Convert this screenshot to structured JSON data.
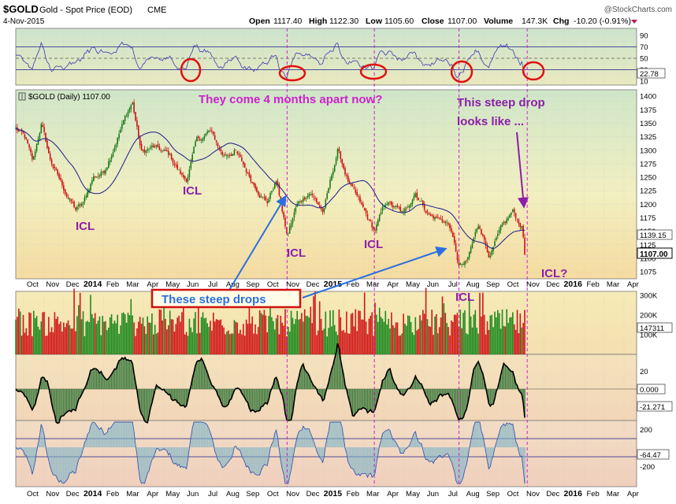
{
  "header": {
    "symbol": "$GOLD",
    "name": "Gold - Spot Price (EOD)",
    "exchange": "CME",
    "date": "4-Nov-2015",
    "open_label": "Open",
    "open": "1117.40",
    "high_label": "High",
    "high": "1122.30",
    "low_label": "Low",
    "low": "1105.60",
    "close_label": "Close",
    "close": "1107.00",
    "volume_label": "Volume",
    "volume": "147.3K",
    "chg_label": "Chg",
    "chg": "-10.20 (-0.91%)",
    "watermark": "@StockCharts.com"
  },
  "price_legend": "$GOLD (Daily) 1107.00",
  "annotations": {
    "months_apart": "They come 4 months apart now?",
    "steep_drop_1": "This steep drop",
    "steep_drop_2": "looks like ...",
    "steep_drops": "These steep drops",
    "icl": "ICL",
    "icl_q": "ICL?"
  },
  "colors": {
    "up": "#1a7a1a",
    "down": "#cc1111",
    "ma": "#1a1a8a",
    "annotation_purple": "#8b1fa8",
    "annotation_magenta": "#cc22cc",
    "arrow_blue": "#2b6fe0",
    "circle_red": "#e01010",
    "box_red": "#d01010"
  },
  "rsi_panel": {
    "ticks": [
      "90",
      "70",
      "50",
      "30",
      "10"
    ],
    "value_label": "22.78"
  },
  "volume_panel": {
    "ticks": [
      "300K",
      "200K",
      "100K"
    ],
    "value_label": "147311"
  },
  "osc1_panel": {
    "ticks": [
      "20",
      "0.000",
      "-21.271"
    ]
  },
  "osc2_panel": {
    "ticks": [
      "200",
      "-64.47",
      "-200"
    ]
  },
  "price_value_labels": {
    "ma": "1139.15",
    "close": "1107.00"
  },
  "chart_data": {
    "type": "candlestick",
    "title": "$GOLD Gold - Spot Price (EOD)",
    "x_labels": [
      "Oct",
      "Nov",
      "Dec",
      "2014",
      "Feb",
      "Mar",
      "Apr",
      "May",
      "Jun",
      "Jul",
      "Aug",
      "Sep",
      "Oct",
      "Nov",
      "Dec",
      "2015",
      "Feb",
      "Mar",
      "Apr",
      "May",
      "Jun",
      "Jul",
      "Aug",
      "Sep",
      "Oct",
      "Nov",
      "Dec",
      "2016",
      "Feb",
      "Mar",
      "Apr"
    ],
    "y_ticks": [
      1400,
      1375,
      1350,
      1325,
      1300,
      1275,
      1250,
      1225,
      1200,
      1175,
      1150,
      1125,
      1100,
      1075
    ],
    "ylim": [
      1062,
      1412
    ],
    "price_path": [
      {
        "date": "2013-09-20",
        "value": 1340
      },
      {
        "date": "2013-10-04",
        "value": 1320
      },
      {
        "date": "2013-10-15",
        "value": 1275
      },
      {
        "date": "2013-10-28",
        "value": 1350
      },
      {
        "date": "2013-11-10",
        "value": 1285
      },
      {
        "date": "2013-11-25",
        "value": 1245
      },
      {
        "date": "2013-12-05",
        "value": 1220
      },
      {
        "date": "2013-12-19",
        "value": 1190
      },
      {
        "date": "2013-12-31",
        "value": 1200
      },
      {
        "date": "2014-01-15",
        "value": 1250
      },
      {
        "date": "2014-02-01",
        "value": 1260
      },
      {
        "date": "2014-02-25",
        "value": 1335
      },
      {
        "date": "2014-03-14",
        "value": 1390
      },
      {
        "date": "2014-03-28",
        "value": 1295
      },
      {
        "date": "2014-04-15",
        "value": 1305
      },
      {
        "date": "2014-05-10",
        "value": 1290
      },
      {
        "date": "2014-05-30",
        "value": 1250
      },
      {
        "date": "2014-06-05",
        "value": 1245
      },
      {
        "date": "2014-06-20",
        "value": 1315
      },
      {
        "date": "2014-07-10",
        "value": 1335
      },
      {
        "date": "2014-07-31",
        "value": 1290
      },
      {
        "date": "2014-08-18",
        "value": 1300
      },
      {
        "date": "2014-09-10",
        "value": 1250
      },
      {
        "date": "2014-10-06",
        "value": 1205
      },
      {
        "date": "2014-10-20",
        "value": 1245
      },
      {
        "date": "2014-11-06",
        "value": 1140
      },
      {
        "date": "2014-11-20",
        "value": 1195
      },
      {
        "date": "2014-12-10",
        "value": 1225
      },
      {
        "date": "2014-12-31",
        "value": 1185
      },
      {
        "date": "2015-01-22",
        "value": 1300
      },
      {
        "date": "2015-02-10",
        "value": 1235
      },
      {
        "date": "2015-03-17",
        "value": 1150
      },
      {
        "date": "2015-04-05",
        "value": 1205
      },
      {
        "date": "2015-05-01",
        "value": 1180
      },
      {
        "date": "2015-05-18",
        "value": 1225
      },
      {
        "date": "2015-06-10",
        "value": 1180
      },
      {
        "date": "2015-06-30",
        "value": 1170
      },
      {
        "date": "2015-07-10",
        "value": 1160
      },
      {
        "date": "2015-07-24",
        "value": 1085
      },
      {
        "date": "2015-08-05",
        "value": 1090
      },
      {
        "date": "2015-08-24",
        "value": 1165
      },
      {
        "date": "2015-09-10",
        "value": 1105
      },
      {
        "date": "2015-09-25",
        "value": 1145
      },
      {
        "date": "2015-10-14",
        "value": 1185
      },
      {
        "date": "2015-10-28",
        "value": 1160
      },
      {
        "date": "2015-11-04",
        "value": 1107
      }
    ],
    "moving_average_end": 1139.15,
    "last_close": 1107.0,
    "icl_marks": [
      {
        "date": "2013-12-19",
        "value": 1190,
        "label": "ICL"
      },
      {
        "date": "2014-06-05",
        "value": 1245,
        "label": "ICL"
      },
      {
        "date": "2014-11-06",
        "value": 1140,
        "label": "ICL"
      },
      {
        "date": "2015-03-17",
        "value": 1150,
        "label": "ICL"
      },
      {
        "date": "2015-07-24",
        "value": 1085,
        "label": "ICL"
      }
    ],
    "vertical_cycle_lines": [
      "2014-11-06",
      "2015-03-17",
      "2015-07-24",
      "2015-11-06"
    ],
    "volume_ylim": [
      0,
      320000
    ],
    "volume_last": 147311,
    "rsi_last": 22.78,
    "osc1_last": -21.271,
    "osc2_last": -64.47
  }
}
